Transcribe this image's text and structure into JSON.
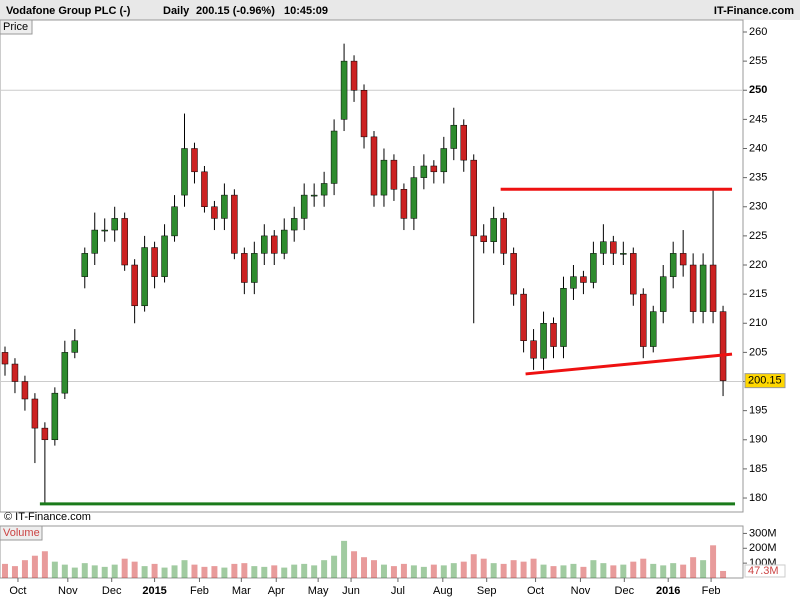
{
  "chart_data": {
    "type": "candlestick",
    "header": {
      "name": "Vodafone Group PLC (-)",
      "period": "Daily",
      "quote": "200.15 (-0.96%)",
      "time": "10:45:09",
      "site": "IT-Finance.com"
    },
    "price_label": "Price",
    "volume_label": "Volume",
    "copyright": "© IT-Finance.com",
    "up_color": "#2e8b2e",
    "down_color": "#cc2222",
    "wick_color": "#000000",
    "open": [
      205,
      203,
      200,
      197,
      192,
      190,
      198,
      205,
      218,
      222,
      226,
      226,
      228,
      220,
      213,
      223,
      218,
      225,
      232,
      240,
      236,
      230,
      228,
      232,
      222,
      217,
      222,
      225,
      222,
      226,
      228,
      232,
      232,
      234,
      245,
      255,
      250,
      242,
      232,
      238,
      233,
      228,
      235,
      237,
      236,
      240,
      244,
      238,
      225,
      224,
      228,
      222,
      215,
      207,
      204,
      210,
      206,
      216,
      218,
      217,
      222,
      224,
      222,
      222,
      215,
      206,
      212,
      218,
      222,
      220,
      212,
      220,
      212
    ],
    "high": [
      206,
      204,
      201,
      198,
      193,
      199,
      207,
      209,
      223,
      229,
      228,
      230,
      229,
      221,
      225,
      224,
      227,
      232,
      246,
      241,
      237,
      231,
      234,
      233,
      223,
      224,
      227,
      226,
      228,
      230,
      234,
      234,
      236,
      245,
      258,
      256,
      251,
      243,
      240,
      239,
      234,
      237,
      239,
      238,
      242,
      247,
      245,
      239,
      227,
      230,
      229,
      223,
      216,
      209,
      212,
      211,
      218,
      220,
      219,
      224,
      227,
      225,
      224,
      223,
      216,
      213,
      220,
      224,
      226,
      222,
      222,
      233,
      213
    ],
    "low": [
      201,
      198,
      195,
      186,
      179,
      189,
      197,
      204,
      216,
      220,
      224,
      224,
      219,
      210,
      212,
      216,
      217,
      224,
      230,
      234,
      229,
      226,
      226,
      221,
      215,
      215,
      220,
      220,
      221,
      224,
      226,
      230,
      230,
      232,
      243,
      248,
      240,
      230,
      230,
      231,
      226,
      226,
      233,
      234,
      234,
      238,
      236,
      210,
      222,
      222,
      220,
      213,
      205,
      202,
      202,
      204,
      204,
      214,
      215,
      216,
      220,
      220,
      220,
      213,
      204,
      205,
      210,
      216,
      218,
      210,
      210,
      210,
      197.5
    ],
    "close": [
      203,
      200,
      197,
      192,
      190,
      198,
      205,
      207,
      222,
      226,
      226,
      228,
      220,
      213,
      223,
      218,
      225,
      230,
      240,
      236,
      230,
      228,
      232,
      222,
      217,
      222,
      225,
      222,
      226,
      228,
      232,
      232,
      234,
      243,
      255,
      250,
      242,
      232,
      238,
      233,
      228,
      235,
      237,
      236,
      240,
      244,
      238,
      225,
      224,
      228,
      222,
      215,
      207,
      204,
      210,
      206,
      216,
      218,
      217,
      222,
      224,
      222,
      222,
      215,
      206,
      212,
      218,
      222,
      220,
      212,
      220,
      212,
      200.15
    ],
    "volume": [
      95,
      80,
      120,
      150,
      180,
      110,
      90,
      70,
      100,
      85,
      75,
      90,
      130,
      110,
      80,
      95,
      70,
      85,
      120,
      90,
      75,
      80,
      70,
      95,
      100,
      80,
      75,
      85,
      70,
      90,
      95,
      85,
      120,
      150,
      250,
      180,
      140,
      120,
      90,
      80,
      95,
      85,
      75,
      90,
      85,
      100,
      110,
      160,
      130,
      100,
      95,
      120,
      110,
      130,
      90,
      80,
      85,
      95,
      75,
      120,
      100,
      85,
      90,
      110,
      130,
      95,
      85,
      100,
      90,
      140,
      120,
      220,
      47.3
    ],
    "volume_value_label": "47.3M",
    "last_price": 200.15,
    "xlim": [
      -0.5,
      74
    ],
    "xticks": [
      {
        "value": 1.3,
        "label": "Oct"
      },
      {
        "value": 6.3,
        "label": "Nov"
      },
      {
        "value": 10.7,
        "label": "Dec"
      },
      {
        "value": 15.0,
        "label": "2015"
      },
      {
        "value": 19.5,
        "label": "Feb"
      },
      {
        "value": 23.7,
        "label": "Mar"
      },
      {
        "value": 27.2,
        "label": "Apr"
      },
      {
        "value": 31.4,
        "label": "May"
      },
      {
        "value": 34.7,
        "label": "Jun"
      },
      {
        "value": 39.4,
        "label": "Jul"
      },
      {
        "value": 43.9,
        "label": "Aug"
      },
      {
        "value": 48.3,
        "label": "Sep"
      },
      {
        "value": 53.2,
        "label": "Oct"
      },
      {
        "value": 57.7,
        "label": "Nov"
      },
      {
        "value": 62.1,
        "label": "Dec"
      },
      {
        "value": 66.5,
        "label": "2016"
      },
      {
        "value": 70.8,
        "label": "Feb"
      }
    ],
    "ylim": [
      177.6,
      262.06
    ],
    "yticks": [
      180,
      185,
      190,
      195,
      200,
      205,
      210,
      215,
      220,
      225,
      230,
      235,
      240,
      245,
      250,
      255,
      260
    ],
    "vlim": [
      0,
      350
    ],
    "vticks": [
      {
        "value": 100,
        "label": "100M"
      },
      {
        "value": 200,
        "label": "200M"
      },
      {
        "value": 300,
        "label": "300M"
      }
    ],
    "trendlines": [
      {
        "x": [
          49.7,
          72.9
        ],
        "y": [
          233,
          233
        ],
        "color": "#ee1111"
      },
      {
        "x": [
          52.2,
          72.9
        ],
        "y": [
          201.3,
          204.7
        ],
        "color": "#ee1111"
      },
      {
        "x": [
          3.5,
          73.2
        ],
        "y": [
          179,
          179
        ],
        "color": "#1a7a1a"
      }
    ]
  }
}
